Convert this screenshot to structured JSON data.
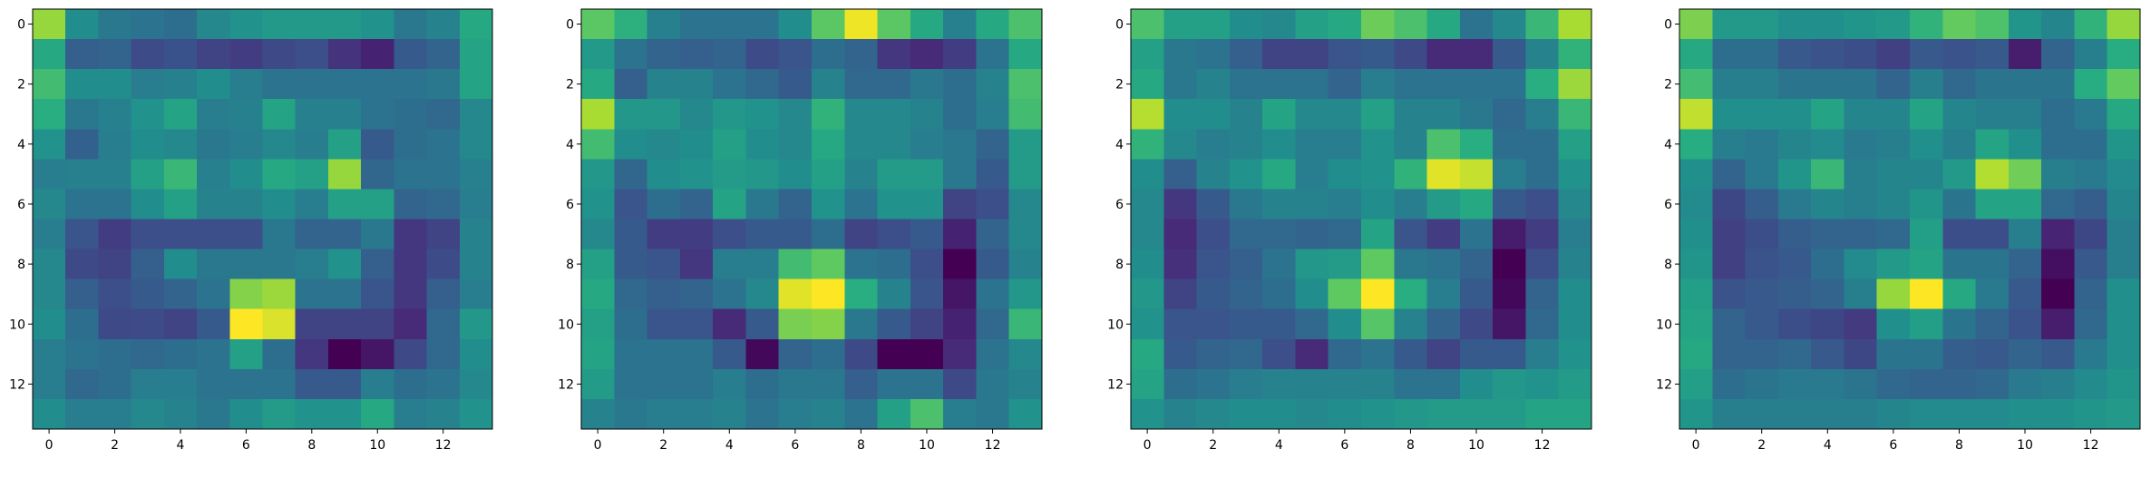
{
  "chart_data": [
    {
      "type": "heatmap",
      "colormap": "viridis",
      "title": "",
      "xlabel": "",
      "ylabel": "",
      "xlim": [
        -0.5,
        13.5
      ],
      "ylim": [
        13.5,
        -0.5
      ],
      "xticks": [
        "0",
        "2",
        "4",
        "6",
        "8",
        "10",
        "12"
      ],
      "yticks": [
        "0",
        "2",
        "4",
        "6",
        "8",
        "10",
        "12"
      ],
      "grid": false,
      "values": [
        [
          0.85,
          0.5,
          0.42,
          0.4,
          0.38,
          0.48,
          0.52,
          0.55,
          0.55,
          0.55,
          0.52,
          0.42,
          0.46,
          0.62
        ],
        [
          0.62,
          0.32,
          0.34,
          0.25,
          0.27,
          0.22,
          0.2,
          0.24,
          0.26,
          0.17,
          0.12,
          0.3,
          0.34,
          0.6
        ],
        [
          0.7,
          0.5,
          0.5,
          0.44,
          0.45,
          0.5,
          0.44,
          0.4,
          0.4,
          0.4,
          0.4,
          0.4,
          0.42,
          0.6
        ],
        [
          0.64,
          0.42,
          0.45,
          0.52,
          0.6,
          0.44,
          0.45,
          0.6,
          0.45,
          0.45,
          0.4,
          0.38,
          0.36,
          0.48
        ],
        [
          0.52,
          0.33,
          0.44,
          0.5,
          0.48,
          0.42,
          0.44,
          0.48,
          0.44,
          0.58,
          0.3,
          0.38,
          0.4,
          0.48
        ],
        [
          0.44,
          0.45,
          0.45,
          0.58,
          0.68,
          0.45,
          0.5,
          0.62,
          0.58,
          0.85,
          0.35,
          0.4,
          0.4,
          0.45
        ],
        [
          0.48,
          0.4,
          0.4,
          0.5,
          0.58,
          0.46,
          0.46,
          0.5,
          0.44,
          0.58,
          0.58,
          0.34,
          0.36,
          0.44
        ],
        [
          0.44,
          0.28,
          0.2,
          0.26,
          0.26,
          0.26,
          0.26,
          0.42,
          0.34,
          0.34,
          0.42,
          0.18,
          0.22,
          0.46
        ],
        [
          0.48,
          0.24,
          0.22,
          0.32,
          0.5,
          0.42,
          0.42,
          0.42,
          0.44,
          0.52,
          0.32,
          0.18,
          0.25,
          0.46
        ],
        [
          0.48,
          0.32,
          0.26,
          0.3,
          0.34,
          0.4,
          0.82,
          0.86,
          0.4,
          0.4,
          0.28,
          0.18,
          0.32,
          0.44
        ],
        [
          0.5,
          0.38,
          0.24,
          0.25,
          0.22,
          0.3,
          1.0,
          0.95,
          0.22,
          0.22,
          0.22,
          0.14,
          0.36,
          0.54
        ],
        [
          0.44,
          0.4,
          0.38,
          0.36,
          0.38,
          0.4,
          0.58,
          0.38,
          0.18,
          0.02,
          0.08,
          0.24,
          0.36,
          0.5
        ],
        [
          0.44,
          0.36,
          0.38,
          0.44,
          0.44,
          0.4,
          0.4,
          0.4,
          0.3,
          0.3,
          0.44,
          0.38,
          0.4,
          0.48
        ],
        [
          0.5,
          0.44,
          0.44,
          0.48,
          0.46,
          0.42,
          0.5,
          0.56,
          0.52,
          0.52,
          0.62,
          0.44,
          0.46,
          0.52
        ]
      ]
    },
    {
      "type": "heatmap",
      "colormap": "viridis",
      "title": "",
      "xlabel": "",
      "ylabel": "",
      "xlim": [
        -0.5,
        13.5
      ],
      "ylim": [
        13.5,
        -0.5
      ],
      "xticks": [
        "0",
        "2",
        "4",
        "6",
        "8",
        "10",
        "12"
      ],
      "yticks": [
        "0",
        "2",
        "4",
        "6",
        "8",
        "10",
        "12"
      ],
      "grid": false,
      "values": [
        [
          0.75,
          0.65,
          0.45,
          0.4,
          0.4,
          0.4,
          0.5,
          0.75,
          0.98,
          0.75,
          0.62,
          0.45,
          0.62,
          0.72
        ],
        [
          0.55,
          0.4,
          0.34,
          0.32,
          0.34,
          0.25,
          0.28,
          0.38,
          0.34,
          0.18,
          0.14,
          0.2,
          0.4,
          0.62
        ],
        [
          0.62,
          0.32,
          0.46,
          0.46,
          0.4,
          0.36,
          0.3,
          0.46,
          0.36,
          0.36,
          0.42,
          0.38,
          0.46,
          0.72
        ],
        [
          0.88,
          0.54,
          0.54,
          0.48,
          0.54,
          0.52,
          0.48,
          0.66,
          0.48,
          0.48,
          0.46,
          0.38,
          0.44,
          0.7
        ],
        [
          0.7,
          0.5,
          0.48,
          0.5,
          0.58,
          0.5,
          0.48,
          0.62,
          0.48,
          0.48,
          0.44,
          0.42,
          0.34,
          0.56
        ],
        [
          0.54,
          0.35,
          0.5,
          0.52,
          0.56,
          0.54,
          0.5,
          0.58,
          0.46,
          0.56,
          0.56,
          0.42,
          0.3,
          0.56
        ],
        [
          0.52,
          0.28,
          0.38,
          0.34,
          0.6,
          0.42,
          0.34,
          0.52,
          0.4,
          0.52,
          0.52,
          0.22,
          0.26,
          0.48
        ],
        [
          0.48,
          0.3,
          0.2,
          0.2,
          0.26,
          0.3,
          0.3,
          0.38,
          0.22,
          0.26,
          0.3,
          0.12,
          0.34,
          0.48
        ],
        [
          0.58,
          0.3,
          0.28,
          0.18,
          0.44,
          0.44,
          0.7,
          0.76,
          0.4,
          0.38,
          0.26,
          0.02,
          0.3,
          0.46
        ],
        [
          0.62,
          0.36,
          0.32,
          0.34,
          0.4,
          0.48,
          0.96,
          1.0,
          0.64,
          0.46,
          0.28,
          0.08,
          0.4,
          0.54
        ],
        [
          0.58,
          0.38,
          0.28,
          0.28,
          0.14,
          0.3,
          0.8,
          0.82,
          0.42,
          0.3,
          0.22,
          0.12,
          0.36,
          0.68
        ],
        [
          0.6,
          0.4,
          0.4,
          0.4,
          0.3,
          0.04,
          0.34,
          0.38,
          0.24,
          0.02,
          0.02,
          0.14,
          0.4,
          0.48
        ],
        [
          0.56,
          0.4,
          0.4,
          0.4,
          0.44,
          0.38,
          0.42,
          0.42,
          0.32,
          0.4,
          0.4,
          0.24,
          0.42,
          0.46
        ],
        [
          0.46,
          0.42,
          0.44,
          0.44,
          0.46,
          0.4,
          0.44,
          0.46,
          0.4,
          0.58,
          0.72,
          0.44,
          0.42,
          0.52
        ]
      ]
    },
    {
      "type": "heatmap",
      "colormap": "viridis",
      "title": "",
      "xlabel": "",
      "ylabel": "",
      "xlim": [
        -0.5,
        13.5
      ],
      "ylim": [
        13.5,
        -0.5
      ],
      "xticks": [
        "0",
        "2",
        "4",
        "6",
        "8",
        "10",
        "12"
      ],
      "yticks": [
        "0",
        "2",
        "4",
        "6",
        "8",
        "10",
        "12"
      ],
      "grid": false,
      "values": [
        [
          0.72,
          0.58,
          0.58,
          0.5,
          0.48,
          0.58,
          0.62,
          0.78,
          0.72,
          0.62,
          0.4,
          0.48,
          0.68,
          0.88
        ],
        [
          0.58,
          0.42,
          0.4,
          0.32,
          0.22,
          0.22,
          0.28,
          0.3,
          0.24,
          0.14,
          0.14,
          0.3,
          0.46,
          0.66
        ],
        [
          0.62,
          0.42,
          0.46,
          0.4,
          0.4,
          0.4,
          0.34,
          0.44,
          0.4,
          0.4,
          0.4,
          0.4,
          0.64,
          0.86
        ],
        [
          0.9,
          0.5,
          0.5,
          0.46,
          0.6,
          0.48,
          0.48,
          0.58,
          0.46,
          0.46,
          0.42,
          0.36,
          0.44,
          0.68
        ],
        [
          0.66,
          0.48,
          0.44,
          0.46,
          0.5,
          0.44,
          0.44,
          0.52,
          0.46,
          0.72,
          0.64,
          0.38,
          0.38,
          0.58
        ],
        [
          0.5,
          0.32,
          0.46,
          0.52,
          0.62,
          0.44,
          0.5,
          0.52,
          0.66,
          0.96,
          0.92,
          0.44,
          0.38,
          0.52
        ],
        [
          0.48,
          0.18,
          0.3,
          0.42,
          0.46,
          0.46,
          0.44,
          0.5,
          0.44,
          0.56,
          0.62,
          0.3,
          0.26,
          0.48
        ],
        [
          0.48,
          0.14,
          0.26,
          0.36,
          0.36,
          0.34,
          0.36,
          0.6,
          0.28,
          0.2,
          0.4,
          0.1,
          0.2,
          0.44
        ],
        [
          0.5,
          0.16,
          0.28,
          0.32,
          0.4,
          0.54,
          0.56,
          0.76,
          0.42,
          0.4,
          0.34,
          0.02,
          0.26,
          0.46
        ],
        [
          0.54,
          0.22,
          0.3,
          0.34,
          0.38,
          0.5,
          0.76,
          1.0,
          0.64,
          0.44,
          0.3,
          0.04,
          0.34,
          0.5
        ],
        [
          0.52,
          0.28,
          0.28,
          0.3,
          0.3,
          0.36,
          0.5,
          0.74,
          0.46,
          0.34,
          0.24,
          0.08,
          0.36,
          0.5
        ],
        [
          0.62,
          0.3,
          0.34,
          0.36,
          0.26,
          0.14,
          0.36,
          0.4,
          0.3,
          0.22,
          0.3,
          0.3,
          0.44,
          0.52
        ],
        [
          0.6,
          0.38,
          0.4,
          0.44,
          0.46,
          0.46,
          0.46,
          0.46,
          0.4,
          0.4,
          0.5,
          0.54,
          0.52,
          0.56
        ],
        [
          0.52,
          0.46,
          0.48,
          0.5,
          0.5,
          0.48,
          0.5,
          0.52,
          0.54,
          0.56,
          0.56,
          0.56,
          0.6,
          0.6
        ]
      ]
    },
    {
      "type": "heatmap",
      "colormap": "viridis",
      "title": "",
      "xlabel": "",
      "ylabel": "",
      "xlim": [
        -0.5,
        13.5
      ],
      "ylim": [
        13.5,
        -0.5
      ],
      "xticks": [
        "0",
        "2",
        "4",
        "6",
        "8",
        "10",
        "12"
      ],
      "yticks": [
        "0",
        "2",
        "4",
        "6",
        "8",
        "10",
        "12"
      ],
      "grid": false,
      "values": [
        [
          0.78,
          0.54,
          0.54,
          0.5,
          0.5,
          0.52,
          0.54,
          0.64,
          0.74,
          0.7,
          0.52,
          0.46,
          0.64,
          0.82
        ],
        [
          0.6,
          0.38,
          0.38,
          0.3,
          0.28,
          0.26,
          0.22,
          0.3,
          0.28,
          0.3,
          0.12,
          0.34,
          0.44,
          0.62
        ],
        [
          0.68,
          0.44,
          0.44,
          0.4,
          0.4,
          0.4,
          0.34,
          0.44,
          0.36,
          0.4,
          0.4,
          0.4,
          0.62,
          0.74
        ],
        [
          0.88,
          0.5,
          0.5,
          0.5,
          0.58,
          0.46,
          0.46,
          0.58,
          0.46,
          0.44,
          0.44,
          0.38,
          0.42,
          0.6
        ],
        [
          0.62,
          0.44,
          0.42,
          0.46,
          0.48,
          0.42,
          0.44,
          0.5,
          0.44,
          0.58,
          0.5,
          0.38,
          0.38,
          0.52
        ],
        [
          0.5,
          0.34,
          0.42,
          0.52,
          0.66,
          0.44,
          0.46,
          0.46,
          0.54,
          0.86,
          0.76,
          0.44,
          0.42,
          0.48
        ],
        [
          0.48,
          0.24,
          0.32,
          0.42,
          0.46,
          0.44,
          0.46,
          0.52,
          0.4,
          0.58,
          0.58,
          0.36,
          0.32,
          0.46
        ],
        [
          0.5,
          0.22,
          0.26,
          0.32,
          0.34,
          0.34,
          0.36,
          0.56,
          0.26,
          0.26,
          0.44,
          0.14,
          0.24,
          0.44
        ],
        [
          0.52,
          0.22,
          0.28,
          0.3,
          0.38,
          0.48,
          0.54,
          0.58,
          0.4,
          0.4,
          0.34,
          0.08,
          0.3,
          0.44
        ],
        [
          0.56,
          0.28,
          0.3,
          0.32,
          0.34,
          0.44,
          0.82,
          0.96,
          0.6,
          0.42,
          0.3,
          0.04,
          0.34,
          0.5
        ],
        [
          0.58,
          0.34,
          0.3,
          0.26,
          0.24,
          0.2,
          0.5,
          0.56,
          0.4,
          0.34,
          0.28,
          0.12,
          0.36,
          0.5
        ],
        [
          0.6,
          0.34,
          0.34,
          0.36,
          0.3,
          0.24,
          0.4,
          0.4,
          0.32,
          0.3,
          0.34,
          0.3,
          0.42,
          0.5
        ],
        [
          0.56,
          0.38,
          0.4,
          0.42,
          0.42,
          0.4,
          0.36,
          0.34,
          0.34,
          0.36,
          0.42,
          0.44,
          0.48,
          0.52
        ],
        [
          0.52,
          0.44,
          0.44,
          0.44,
          0.44,
          0.44,
          0.46,
          0.48,
          0.48,
          0.48,
          0.5,
          0.5,
          0.52,
          0.54
        ]
      ]
    }
  ]
}
